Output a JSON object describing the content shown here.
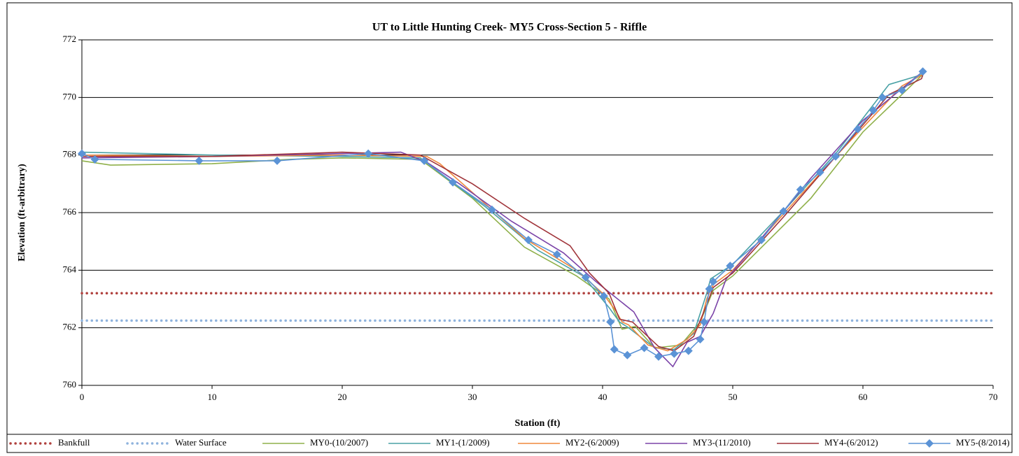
{
  "chart_data": {
    "type": "line",
    "title": "UT to Little Hunting Creek- MY5 Cross-Section 5 - Riffle",
    "x_label": "Station (ft)",
    "y_label": "Elevation (ft-arbitrary)",
    "xlim": [
      0,
      70
    ],
    "xticks": [
      0,
      10,
      20,
      30,
      40,
      50,
      60,
      70
    ],
    "ylim": [
      760,
      772
    ],
    "yticks": [
      760,
      762,
      764,
      766,
      768,
      770,
      772
    ],
    "grid": true,
    "legend": "bottom",
    "series": [
      {
        "name": "Bankfull",
        "color": "#b0413e",
        "style": "dotted",
        "x": [
          0,
          70
        ],
        "values": [
          763.2,
          763.2
        ]
      },
      {
        "name": "Water Surface",
        "color": "#8fb3dd",
        "style": "dotted",
        "x": [
          0,
          70
        ],
        "values": [
          762.25,
          762.25
        ]
      },
      {
        "name": "MY0-(10/2007)",
        "color": "#8fb04a",
        "style": "solid",
        "x": [
          0,
          2.2,
          10,
          16,
          20,
          26,
          30,
          34,
          38,
          40.5,
          41.5,
          42.5,
          44,
          46,
          47.5,
          48.5,
          50,
          56,
          60,
          64.6
        ],
        "values": [
          767.8,
          767.65,
          767.7,
          767.85,
          767.9,
          767.85,
          766.5,
          764.8,
          763.8,
          763.0,
          761.95,
          762.05,
          761.3,
          761.4,
          762.2,
          763.3,
          763.8,
          766.5,
          768.8,
          770.8
        ]
      },
      {
        "name": "MY1-(1/2009)",
        "color": "#4aa2a6",
        "style": "solid",
        "x": [
          0,
          10,
          20,
          26,
          28,
          31,
          35,
          38.5,
          40.5,
          41.3,
          42,
          44,
          45.5,
          47,
          48,
          48.3,
          50,
          54,
          58,
          62,
          64.6
        ],
        "values": [
          768.1,
          768.0,
          767.95,
          767.9,
          767.2,
          766.2,
          764.7,
          763.8,
          762.7,
          762.2,
          762,
          761.3,
          761.25,
          761.8,
          763.2,
          763.7,
          764.2,
          766.1,
          768.1,
          770.45,
          770.8
        ]
      },
      {
        "name": "MY2-(6/2009)",
        "color": "#f0883c",
        "style": "solid",
        "x": [
          0,
          10,
          20,
          26.5,
          27.5,
          30,
          34,
          38,
          40,
          41,
          41.5,
          42,
          43.5,
          45,
          46.5,
          47.5,
          48,
          48.5,
          50,
          54,
          58,
          63,
          64.6
        ],
        "values": [
          768,
          767.95,
          768,
          767.95,
          767.7,
          766.7,
          765.1,
          764,
          763.2,
          762.6,
          762.2,
          762.1,
          761.4,
          761.2,
          761.6,
          762.1,
          763,
          763.5,
          764,
          766,
          768,
          770.4,
          770.8
        ]
      },
      {
        "name": "MY3-(11/2010)",
        "color": "#7b44a8",
        "style": "solid",
        "x": [
          0,
          10,
          20,
          24.5,
          26.5,
          29,
          33,
          37,
          39.5,
          42.4,
          44,
          45.4,
          46.5,
          47.5,
          48.5,
          49.5,
          52,
          56,
          60,
          64.6
        ],
        "values": [
          767.9,
          767.95,
          768.05,
          768.1,
          767.75,
          767,
          765.7,
          764.6,
          763.6,
          762.55,
          761.3,
          760.65,
          761.5,
          761.7,
          762.5,
          763.7,
          765,
          767.2,
          769.2,
          770.9
        ]
      },
      {
        "name": "MY4-(6/2012)",
        "color": "#a0343a",
        "style": "solid",
        "x": [
          0,
          10,
          20,
          26,
          30,
          34,
          37.5,
          39,
          40.5,
          41.3,
          42.3,
          44.3,
          45.5,
          47,
          48,
          48.5,
          50,
          54,
          58,
          62,
          64.5,
          64.7
        ],
        "values": [
          767.95,
          767.95,
          768.1,
          768,
          767,
          765.8,
          764.85,
          763.9,
          763.2,
          762.3,
          762.2,
          761.35,
          761.2,
          761.7,
          762.8,
          763.4,
          763.9,
          765.9,
          768,
          770.1,
          770.65,
          770.9
        ]
      },
      {
        "name": "MY5-(8/2014)",
        "color": "#5b93d6",
        "style": "solid",
        "marker": "diamond",
        "x": [
          0,
          1,
          9,
          15,
          22,
          26.3,
          28.5,
          31.5,
          34.3,
          36.5,
          38.7,
          40.1,
          40.6,
          40.9,
          41.9,
          43.2,
          44.3,
          45.5,
          46.6,
          47.5,
          47.8,
          48.2,
          48.5,
          49.8,
          52.2,
          53.9,
          55.2,
          56.7,
          57.9,
          59.6,
          60.8,
          61.5,
          63,
          64.6
        ],
        "values": [
          768.05,
          767.85,
          767.8,
          767.8,
          768.05,
          767.8,
          767.05,
          766.1,
          765.05,
          764.55,
          763.75,
          763.1,
          762.2,
          761.25,
          761.05,
          761.3,
          761,
          761.1,
          761.2,
          761.6,
          762.2,
          763.35,
          763.6,
          764.15,
          765.05,
          766.05,
          766.8,
          767.4,
          767.95,
          768.9,
          769.55,
          770,
          770.25,
          770.9
        ]
      }
    ]
  }
}
